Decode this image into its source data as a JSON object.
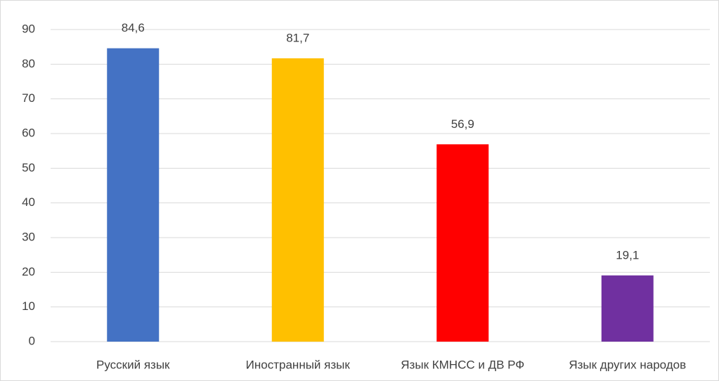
{
  "chart_data": {
    "type": "bar",
    "categories": [
      "Русский язык",
      "Иностранный язык",
      "Язык КМНСС и ДВ РФ",
      "Язык других народов"
    ],
    "values": [
      84.6,
      81.7,
      56.9,
      19.1
    ],
    "value_labels": [
      "84,6",
      "81,7",
      "56,9",
      "19,1"
    ],
    "colors": [
      "#4472c4",
      "#ffc000",
      "#ff0000",
      "#7030a0"
    ],
    "ylim": [
      0,
      90
    ],
    "yticks": [
      0,
      10,
      20,
      30,
      40,
      50,
      60,
      70,
      80,
      90
    ],
    "grid": true
  }
}
